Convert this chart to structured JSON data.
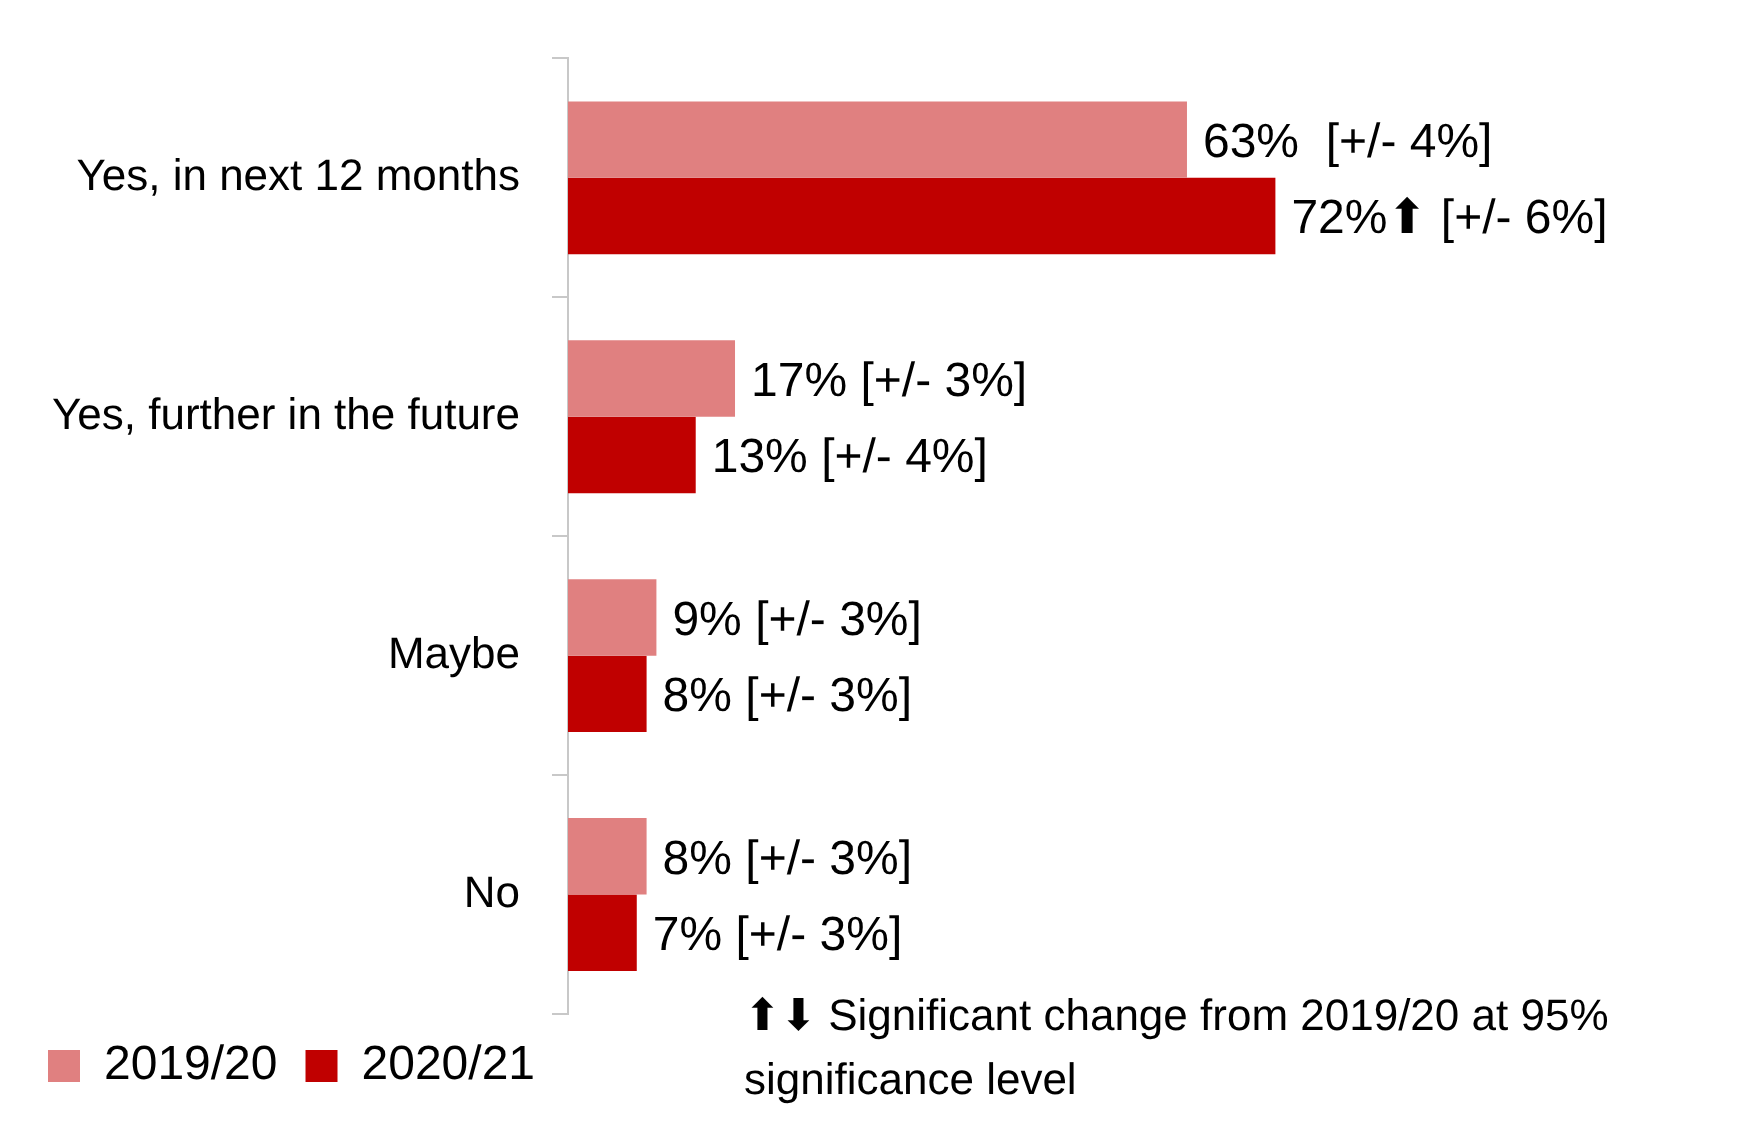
{
  "chart_data": {
    "type": "bar",
    "orientation": "horizontal",
    "categories": [
      "Yes, in next 12 months",
      "Yes, further in the future",
      "Maybe",
      "No"
    ],
    "series": [
      {
        "name": "2019/20",
        "color": "#e08080",
        "values": [
          63,
          17,
          9,
          8
        ],
        "value_labels": [
          "63%  [+/- 4%]",
          "17% [+/- 3%]",
          "9% [+/- 3%]",
          "8% [+/- 3%]"
        ]
      },
      {
        "name": "2020/21",
        "color": "#c00000",
        "values": [
          72,
          13,
          8,
          7
        ],
        "value_labels": [
          "72%⬆ [+/- 6%]",
          "13% [+/- 4%]",
          "8% [+/- 3%]",
          "7% [+/- 3%]"
        ]
      }
    ],
    "legend": "bottom",
    "grid": false,
    "annotations": [
      "⬆⬇ Significant change from 2019/20 at 95% significance level"
    ]
  }
}
